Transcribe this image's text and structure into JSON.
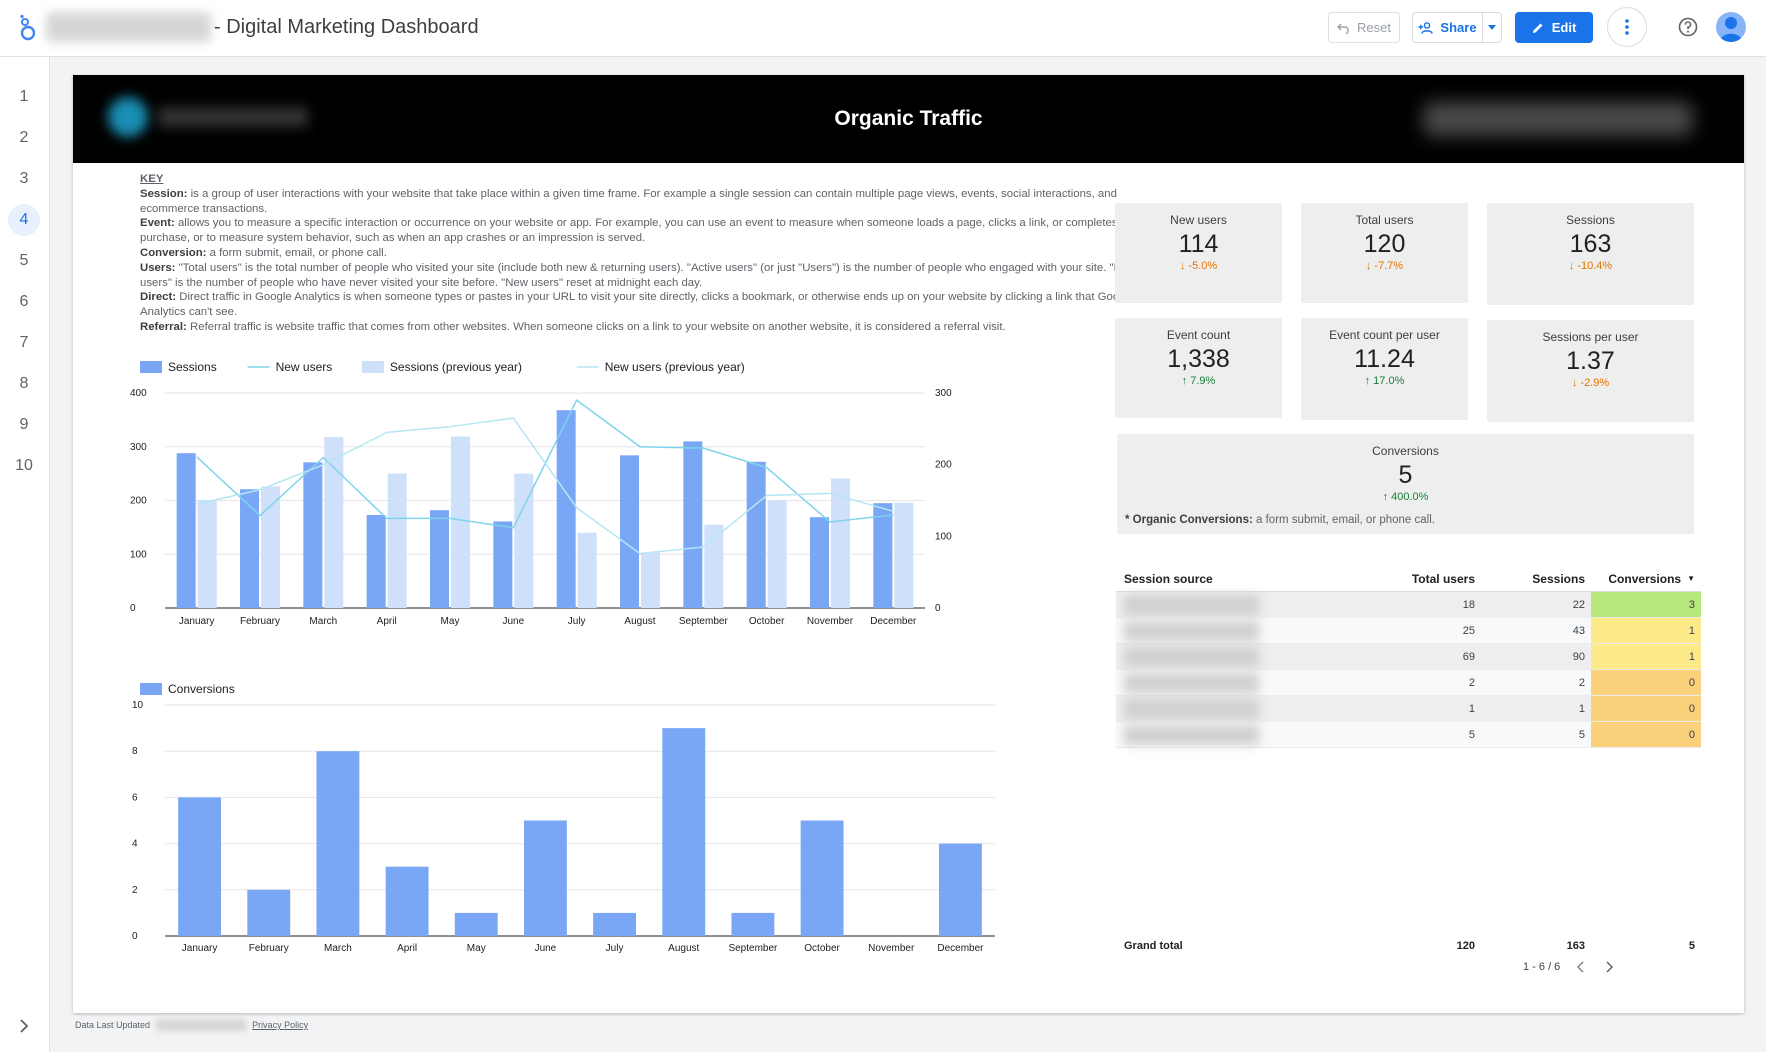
{
  "app": {
    "title": "- Digital Marketing Dashboard",
    "reset_label": "Reset",
    "share_label": "Share",
    "edit_label": "Edit"
  },
  "sidebar": {
    "pages": [
      "1",
      "2",
      "3",
      "4",
      "5",
      "6",
      "7",
      "8",
      "9",
      "10"
    ],
    "active_page": "4"
  },
  "banner": {
    "title": "Organic Traffic"
  },
  "key": {
    "heading": "KEY",
    "items": [
      {
        "term": "Session:",
        "text": " is a group of user interactions with your website that take place within a given time frame. For example a single session can contain multiple page views, events, social interactions, and ecommerce transactions."
      },
      {
        "term": "Event:",
        "text": " allows you to measure a specific interaction or occurrence on your website or app. For example, you can use an event to measure when someone loads a page, clicks a link, or completes a purchase, or to measure system behavior, such as when an app crashes or an impression is served."
      },
      {
        "term": "Conversion:",
        "text": " a form submit, email, or phone call."
      },
      {
        "term": "Users:",
        "text": " \"Total users\" is the total number of people who visited your site (include both new & returning users). \"Active users\" (or just \"Users\") is the number of people who engaged with your site. \"New users\" is the number of people who have never visited your site before. \"New users\" reset at midnight each day."
      },
      {
        "term": "Direct:",
        "text": " Direct traffic in Google Analytics is when someone types or pastes in your URL to visit your site directly, clicks a bookmark, or otherwise ends up on your website by clicking a link that Google Analytics can't see."
      },
      {
        "term": "Referral:",
        "text": " Referral traffic is website traffic that comes from other websites. When someone clicks on a link to your website on another website, it is considered a referral visit."
      }
    ]
  },
  "scorecards": [
    {
      "label": "New users",
      "value": "114",
      "change": "-5.0%",
      "dir": "down"
    },
    {
      "label": "Total users",
      "value": "120",
      "change": "-7.7%",
      "dir": "down"
    },
    {
      "label": "Sessions",
      "value": "163",
      "change": "-10.4%",
      "dir": "down"
    },
    {
      "label": "Event count",
      "value": "1,338",
      "change": "7.9%",
      "dir": "up"
    },
    {
      "label": "Event count per user",
      "value": "11.24",
      "change": "17.0%",
      "dir": "up"
    },
    {
      "label": "Sessions per user",
      "value": "1.37",
      "change": "-2.9%",
      "dir": "down"
    },
    {
      "label": "Conversions",
      "value": "5",
      "change": "400.0%",
      "dir": "up"
    }
  ],
  "conversions_note": {
    "term": "* Organic Conversions:",
    "text": " a form submit, email, or phone call."
  },
  "table": {
    "headers": [
      "Session source",
      "Total users",
      "Sessions",
      "Conversions"
    ],
    "rows": [
      {
        "total_users": "18",
        "sessions": "22",
        "conversions": "3",
        "color": "#b7e67a"
      },
      {
        "total_users": "25",
        "sessions": "43",
        "conversions": "1",
        "color": "#fce98a"
      },
      {
        "total_users": "69",
        "sessions": "90",
        "conversions": "1",
        "color": "#fce98a"
      },
      {
        "total_users": "2",
        "sessions": "2",
        "conversions": "0",
        "color": "#fad07a"
      },
      {
        "total_users": "1",
        "sessions": "1",
        "conversions": "0",
        "color": "#fad07a"
      },
      {
        "total_users": "5",
        "sessions": "5",
        "conversions": "0",
        "color": "#fad07a"
      }
    ],
    "grand_total_label": "Grand total",
    "grand_total": {
      "total_users": "120",
      "sessions": "163",
      "conversions": "5"
    },
    "pager": "1 - 6 / 6"
  },
  "footer": {
    "updated_label": "Data Last Updated",
    "privacy_label": "Privacy Policy"
  },
  "chart_data": [
    {
      "type": "bar",
      "title": "",
      "categories": [
        "January",
        "February",
        "March",
        "April",
        "May",
        "June",
        "July",
        "August",
        "September",
        "October",
        "November",
        "December"
      ],
      "series": [
        {
          "name": "Sessions",
          "kind": "bar",
          "axis": "left",
          "color": "#7aa7f5",
          "values": [
            288,
            221,
            271,
            173,
            182,
            161,
            368,
            284,
            310,
            272,
            169,
            195
          ]
        },
        {
          "name": "New users",
          "kind": "line",
          "axis": "right",
          "color": "#7fd4ec",
          "values": [
            211,
            129,
            210,
            125,
            125,
            112,
            290,
            225,
            223,
            196,
            120,
            130
          ]
        },
        {
          "name": "Sessions (previous year)",
          "kind": "bar",
          "axis": "left",
          "color": "#cfe0fb",
          "values": [
            201,
            226,
            318,
            250,
            319,
            250,
            140,
            103,
            155,
            200,
            241,
            196
          ]
        },
        {
          "name": "New users (previous year)",
          "kind": "line",
          "axis": "right",
          "color": "#b5e6f5",
          "values": [
            145,
            165,
            200,
            245,
            253,
            265,
            140,
            76,
            85,
            157,
            160,
            135
          ]
        }
      ],
      "ylim_left": [
        0,
        400
      ],
      "yticks_left": [
        0,
        100,
        200,
        300,
        400
      ],
      "ylim_right": [
        0,
        300
      ],
      "yticks_right": [
        0,
        100,
        200,
        300
      ],
      "grid": true,
      "legend": "top-left"
    },
    {
      "type": "bar",
      "title": "",
      "categories": [
        "January",
        "February",
        "March",
        "April",
        "May",
        "June",
        "July",
        "August",
        "September",
        "October",
        "November",
        "December"
      ],
      "series": [
        {
          "name": "Conversions",
          "color": "#7aa7f5",
          "values": [
            6,
            2,
            8,
            3,
            1,
            5,
            1,
            9,
            1,
            5,
            0,
            4
          ]
        }
      ],
      "ylim": [
        0,
        10
      ],
      "yticks": [
        0,
        2,
        4,
        6,
        8,
        10
      ],
      "grid": true,
      "legend": "top-left"
    }
  ]
}
